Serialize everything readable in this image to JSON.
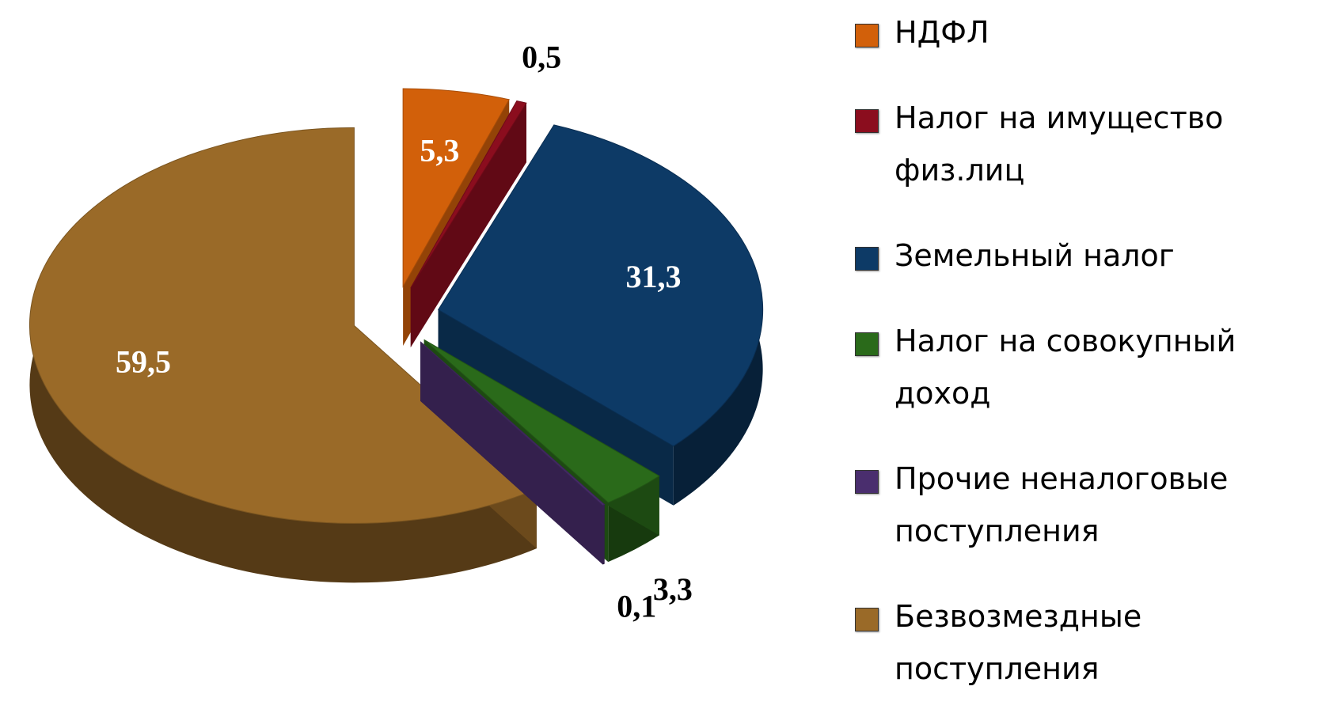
{
  "chart_data": {
    "type": "pie",
    "categories": [
      "НДФЛ",
      "Налог на имущество физ.лиц",
      "Земельный налог",
      "Налог на совокупный доход",
      "Прочие неналоговые поступления",
      "Безвозмездные поступления"
    ],
    "values": [
      5.3,
      0.5,
      31.3,
      3.3,
      0.1,
      59.5
    ],
    "value_labels": [
      "5,3",
      "0,5",
      "31,3",
      "3,3",
      "0,1",
      "59,5"
    ],
    "colors": [
      "#d2600a",
      "#8b0d1e",
      "#0d3a66",
      "#2a6a1a",
      "#4a2e6e",
      "#9a6a28"
    ],
    "legend": "right"
  }
}
